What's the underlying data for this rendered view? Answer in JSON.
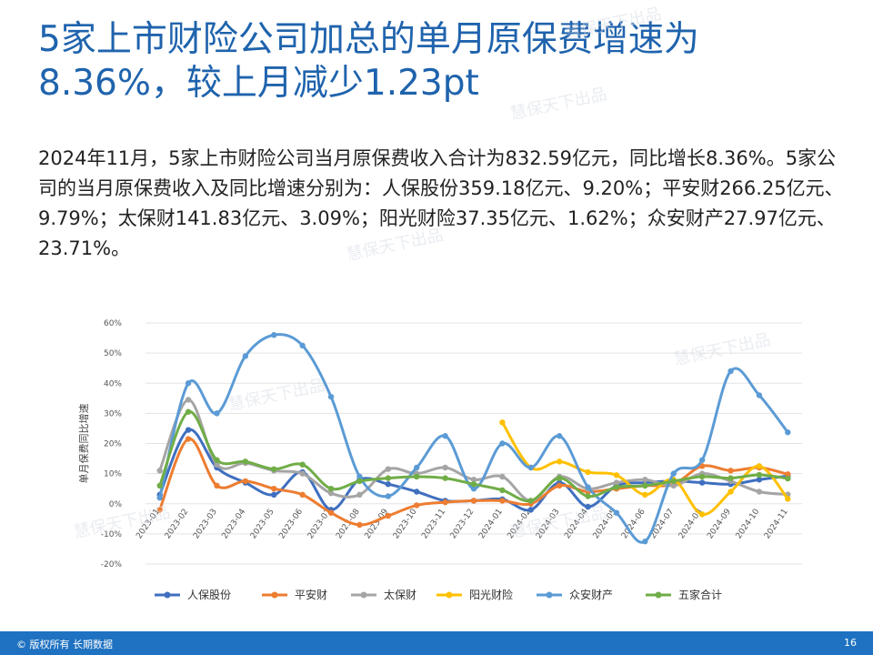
{
  "title_line1": "5家上市财险公司加总的单月原保费增速为",
  "title_line2": "8.36%，较上月减少1.23pt",
  "paragraph": "2024年11月，5家上市财险公司当月原保费收入合计为832.59亿元，同比增长8.36%。5家公司的当月原保费收入及同比增速分别为：人保股份359.18亿元、9.20%；平安财266.25亿元、9.79%；太保财141.83亿元、3.09%；阳光财险37.35亿元、1.62%；众安财产27.97亿元、23.71%。",
  "footer": {
    "copyright": "© 版权所有 长期数据",
    "page": "16"
  },
  "watermark": "慧保天下出品",
  "chart_data": {
    "type": "line",
    "ylabel": "单月保费同比增速",
    "ylim": [
      -20,
      60
    ],
    "yticks": [
      -20,
      -10,
      0,
      10,
      20,
      30,
      40,
      50,
      60
    ],
    "grid": true,
    "legend_position": "bottom",
    "categories": [
      "2023-01",
      "2023-02",
      "2023-03",
      "2023-04",
      "2023-05",
      "2023-06",
      "2023-07",
      "2023-08",
      "2023-09",
      "2023-10",
      "2023-11",
      "2023-12",
      "2024-01",
      "2024-02",
      "2024-03",
      "2024-04",
      "2024-05",
      "2024-06",
      "2024-07",
      "2024-08",
      "2024-09",
      "2024-10",
      "2024-11"
    ],
    "series": [
      {
        "name": "人保股份",
        "color": "#3f6fbf",
        "values": [
          3,
          24.5,
          12,
          7,
          3,
          10.5,
          -2,
          8,
          6.5,
          4,
          1,
          1,
          1.5,
          -2,
          7,
          -1,
          6,
          7,
          7.5,
          7,
          6.5,
          8,
          9.2
        ]
      },
      {
        "name": "平安财",
        "color": "#ed7d31",
        "values": [
          -2,
          21.5,
          6,
          7.5,
          5,
          3,
          -3,
          -7,
          -4,
          -0.5,
          0.5,
          1,
          1,
          0,
          6,
          4,
          5,
          6,
          6.5,
          12.5,
          11,
          12,
          9.79
        ]
      },
      {
        "name": "太保财",
        "color": "#a5a5a5",
        "values": [
          11,
          34.5,
          13,
          13.5,
          11,
          10,
          3.5,
          3,
          11.5,
          10,
          12,
          8,
          9,
          1,
          9,
          5,
          7,
          8,
          6,
          10,
          7.5,
          4,
          3.09
        ]
      },
      {
        "name": "阳光财险",
        "color": "#ffc000",
        "values": [
          null,
          null,
          null,
          null,
          null,
          null,
          null,
          null,
          null,
          null,
          null,
          null,
          27,
          12,
          14,
          10.5,
          9.5,
          3,
          8,
          -3.5,
          4,
          12.5,
          1.62
        ]
      },
      {
        "name": "众安财产",
        "color": "#5b9bd5",
        "values": [
          2,
          40,
          30,
          49,
          56,
          52.5,
          35.5,
          9,
          2.5,
          12,
          22.5,
          5,
          20,
          12,
          22.5,
          5.5,
          -3,
          -12.5,
          10,
          14.5,
          44,
          36,
          23.71
        ]
      },
      {
        "name": "五家合计",
        "color": "#70ad47",
        "values": [
          6,
          30.5,
          14.5,
          14,
          11.5,
          13,
          5,
          7.5,
          8.5,
          9,
          8.5,
          6.5,
          4.5,
          1,
          8.5,
          2.5,
          5.5,
          6,
          7.5,
          9,
          8.5,
          9.6,
          8.36
        ]
      }
    ]
  }
}
